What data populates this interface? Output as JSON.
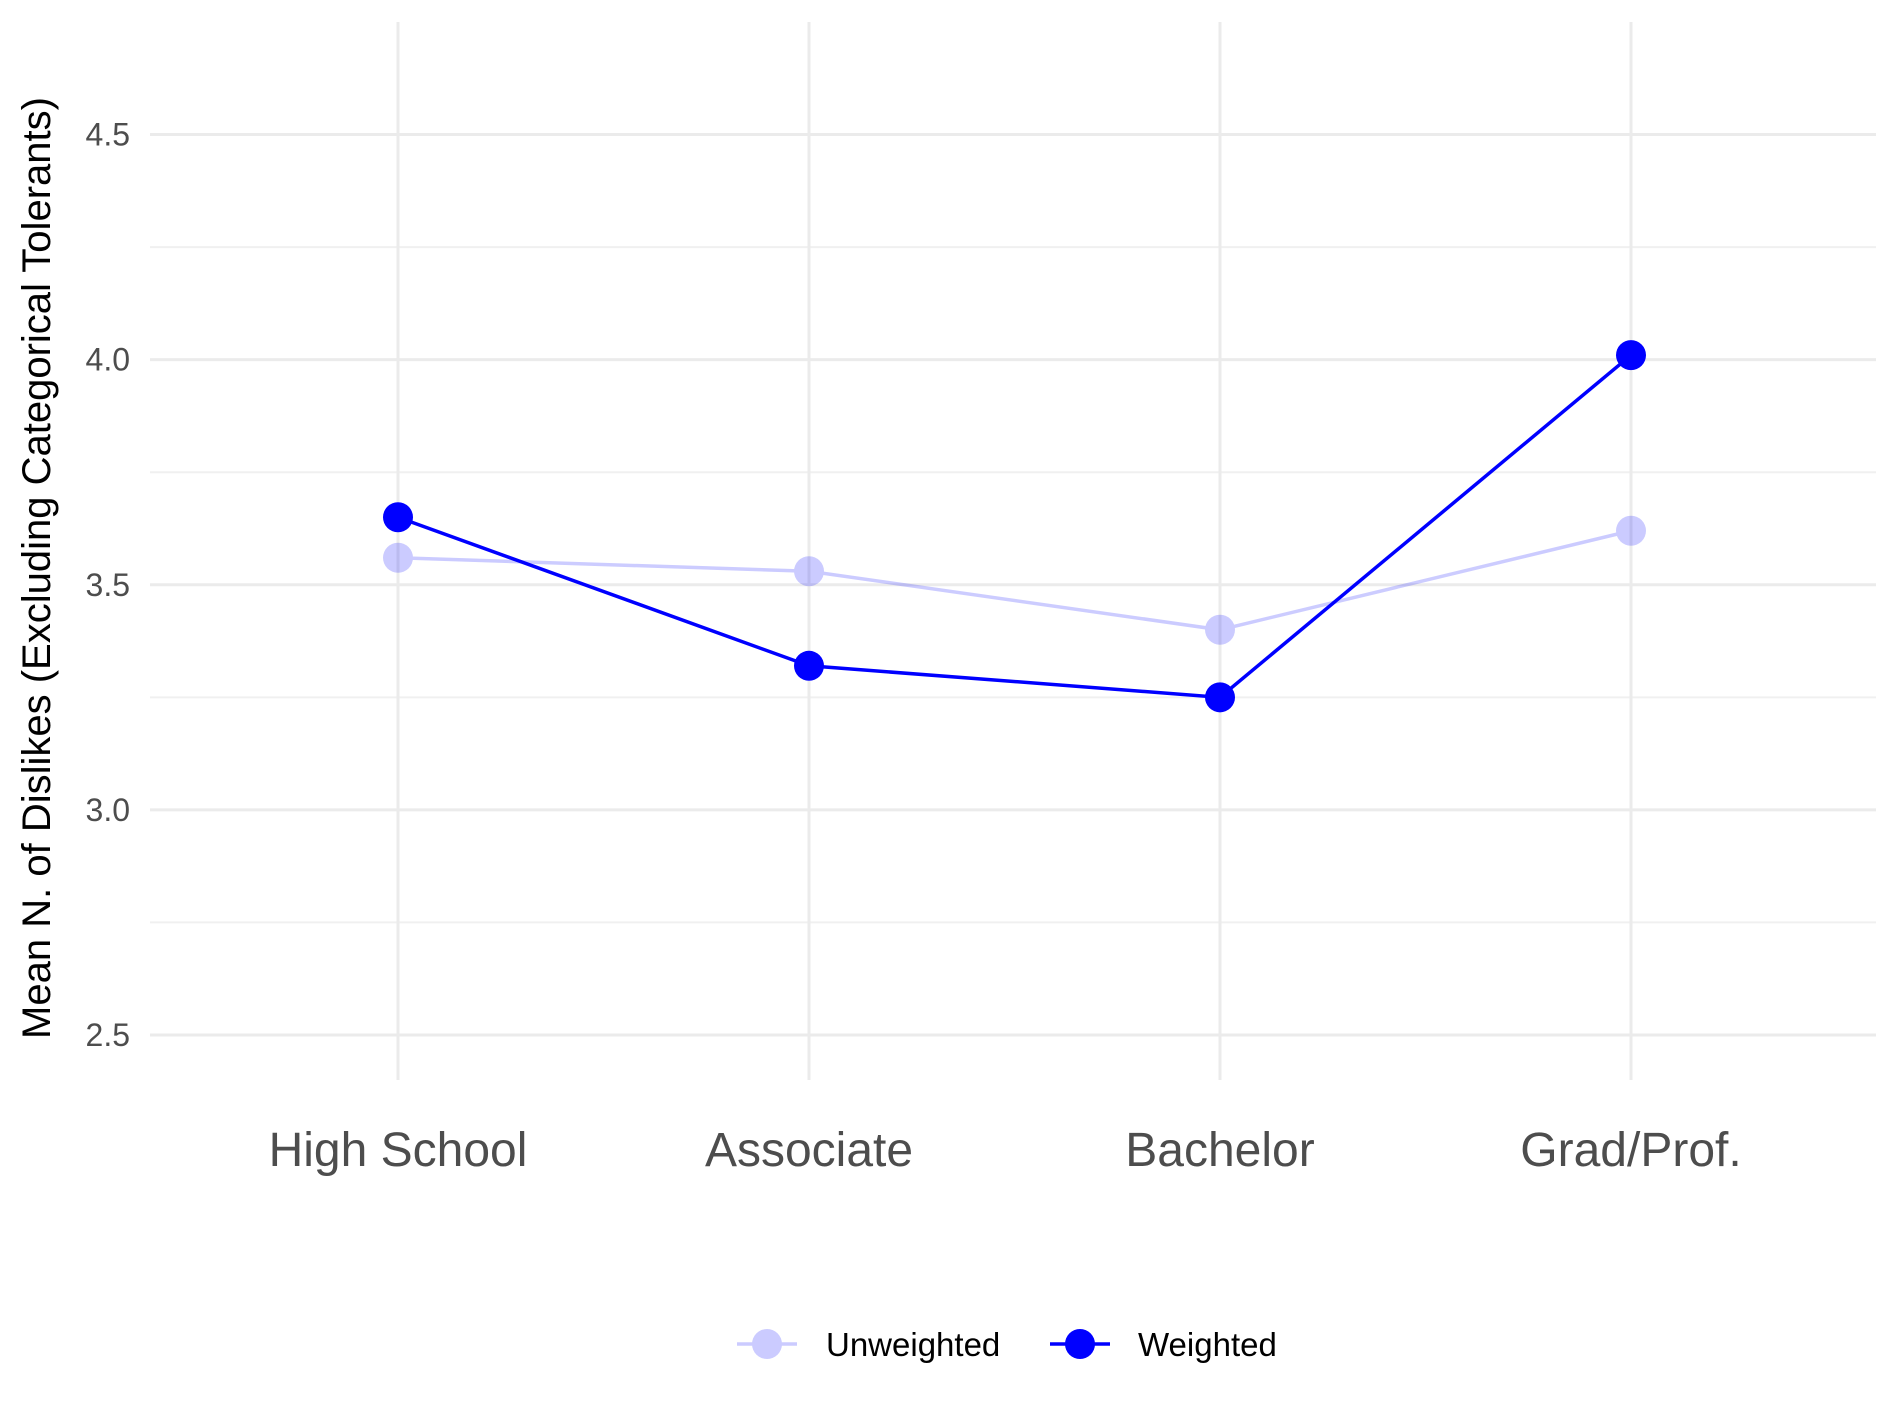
{
  "chart_data": {
    "type": "line",
    "title": "",
    "xlabel": "",
    "ylabel": "Mean N. of Dislikes (Excluding Categorical Tolerants)",
    "categories": [
      "High School",
      "Associate",
      "Bachelor",
      "Grad/Prof."
    ],
    "ylim": [
      2.4,
      4.75
    ],
    "yticks": [
      2.5,
      3.0,
      3.5,
      4.0,
      4.5
    ],
    "ytick_labels": [
      "2.5",
      "3.0",
      "3.5",
      "4.0",
      "4.5"
    ],
    "grid": true,
    "legend_position": "bottom",
    "series": [
      {
        "name": "Unweighted",
        "values": [
          3.56,
          3.53,
          3.4,
          3.62
        ],
        "color": "#0000ff",
        "opacity": 0.2
      },
      {
        "name": "Weighted",
        "values": [
          3.65,
          3.32,
          3.25,
          4.01
        ],
        "color": "#0000ff",
        "opacity": 1.0
      }
    ]
  }
}
